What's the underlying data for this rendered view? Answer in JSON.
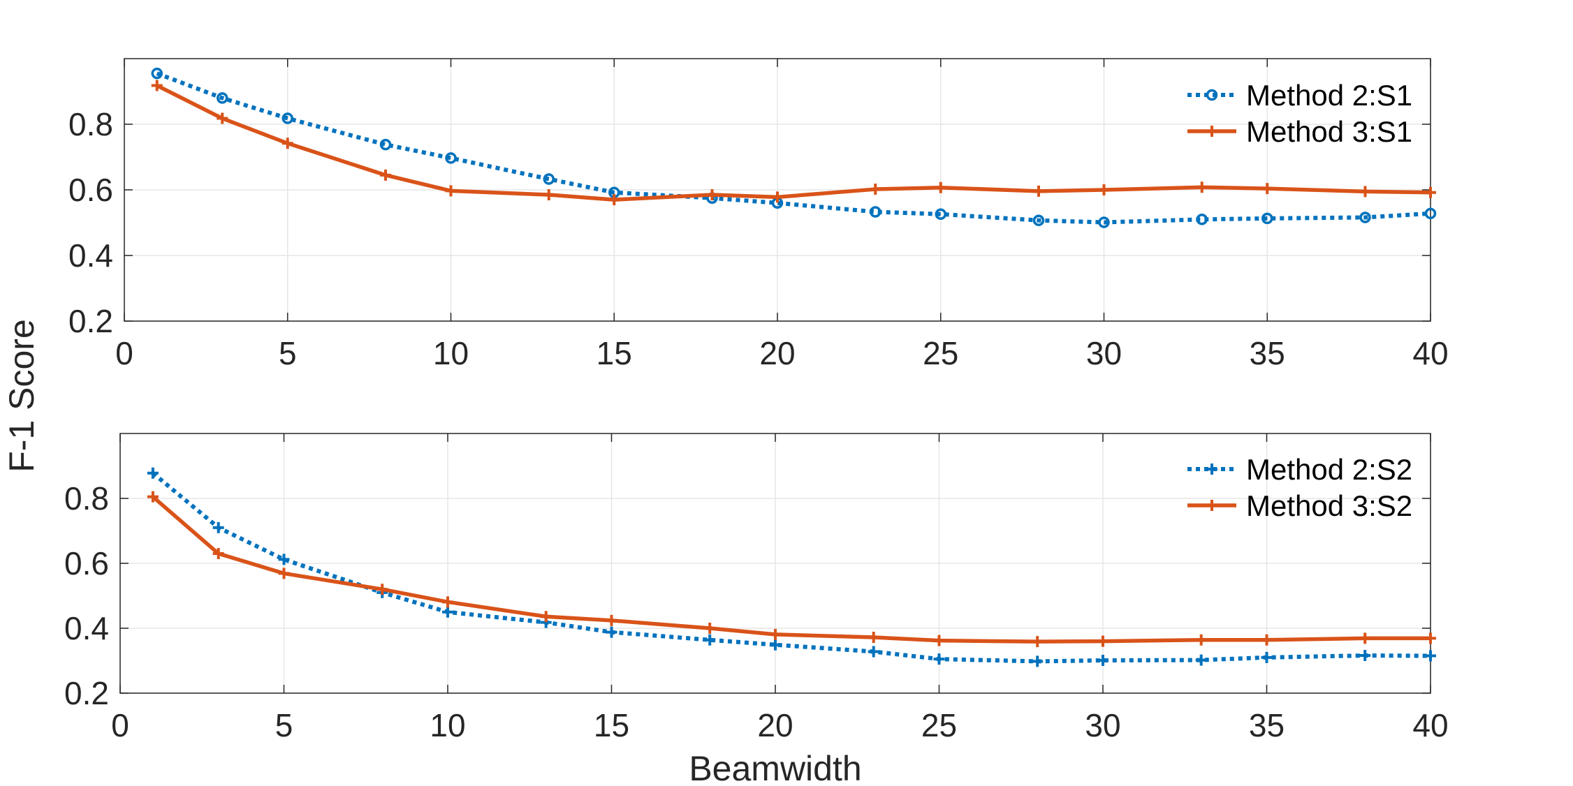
{
  "chart_data": [
    {
      "type": "line",
      "title": "",
      "xlabel": "",
      "ylabel": "F-1 Score",
      "xlim": [
        0,
        40
      ],
      "ylim": [
        0.2,
        1.0
      ],
      "xticks": [
        0,
        5,
        10,
        15,
        20,
        25,
        30,
        35,
        40
      ],
      "yticks": [
        0.2,
        0.4,
        0.6,
        0.8
      ],
      "xtick_labels": [
        "0",
        "5",
        "10",
        "15",
        "20",
        "25",
        "30",
        "35",
        "40"
      ],
      "ytick_labels": [
        "0.2",
        "0.4",
        "0.6",
        "0.8"
      ],
      "grid": true,
      "legend_position": "top-right",
      "x": [
        1,
        3,
        5,
        8,
        10,
        13,
        15,
        18,
        20,
        23,
        25,
        28,
        30,
        33,
        35,
        38,
        40
      ],
      "series": [
        {
          "name": "Method 2:S1",
          "color": "#0072BD",
          "line_style": "dotted",
          "marker": "circle",
          "values": [
            0.955,
            0.88,
            0.818,
            0.738,
            0.697,
            0.633,
            0.592,
            0.575,
            0.56,
            0.533,
            0.526,
            0.507,
            0.501,
            0.51,
            0.513,
            0.516,
            0.528
          ]
        },
        {
          "name": "Method 3:S1",
          "color": "#D95319",
          "line_style": "solid",
          "marker": "plus",
          "values": [
            0.918,
            0.818,
            0.742,
            0.645,
            0.597,
            0.585,
            0.57,
            0.585,
            0.578,
            0.602,
            0.607,
            0.596,
            0.6,
            0.608,
            0.604,
            0.595,
            0.592
          ]
        }
      ]
    },
    {
      "type": "line",
      "title": "",
      "xlabel": "Beamwidth",
      "ylabel": "F-1 Score",
      "xlim": [
        0,
        40
      ],
      "ylim": [
        0.2,
        1.0
      ],
      "xticks": [
        0,
        5,
        10,
        15,
        20,
        25,
        30,
        35,
        40
      ],
      "yticks": [
        0.2,
        0.4,
        0.6,
        0.8
      ],
      "xtick_labels": [
        "0",
        "5",
        "10",
        "15",
        "20",
        "25",
        "30",
        "35",
        "40"
      ],
      "ytick_labels": [
        "0.2",
        "0.4",
        "0.6",
        "0.8"
      ],
      "grid": true,
      "legend_position": "top-right",
      "x": [
        1,
        3,
        5,
        8,
        10,
        13,
        15,
        18,
        20,
        23,
        25,
        28,
        30,
        33,
        35,
        38,
        40
      ],
      "series": [
        {
          "name": "Method 2:S2",
          "color": "#0072BD",
          "line_style": "dotted",
          "marker": "plus",
          "values": [
            0.878,
            0.71,
            0.612,
            0.51,
            0.45,
            0.418,
            0.388,
            0.364,
            0.349,
            0.328,
            0.305,
            0.298,
            0.301,
            0.302,
            0.31,
            0.316,
            0.315
          ]
        },
        {
          "name": "Method 3:S2",
          "color": "#D95319",
          "line_style": "solid",
          "marker": "plus",
          "values": [
            0.805,
            0.63,
            0.569,
            0.52,
            0.481,
            0.436,
            0.424,
            0.4,
            0.381,
            0.372,
            0.362,
            0.359,
            0.36,
            0.364,
            0.364,
            0.369,
            0.369
          ]
        }
      ]
    }
  ],
  "figure": {
    "ylabel": "F-1 Score",
    "xlabel": "Beamwidth"
  }
}
